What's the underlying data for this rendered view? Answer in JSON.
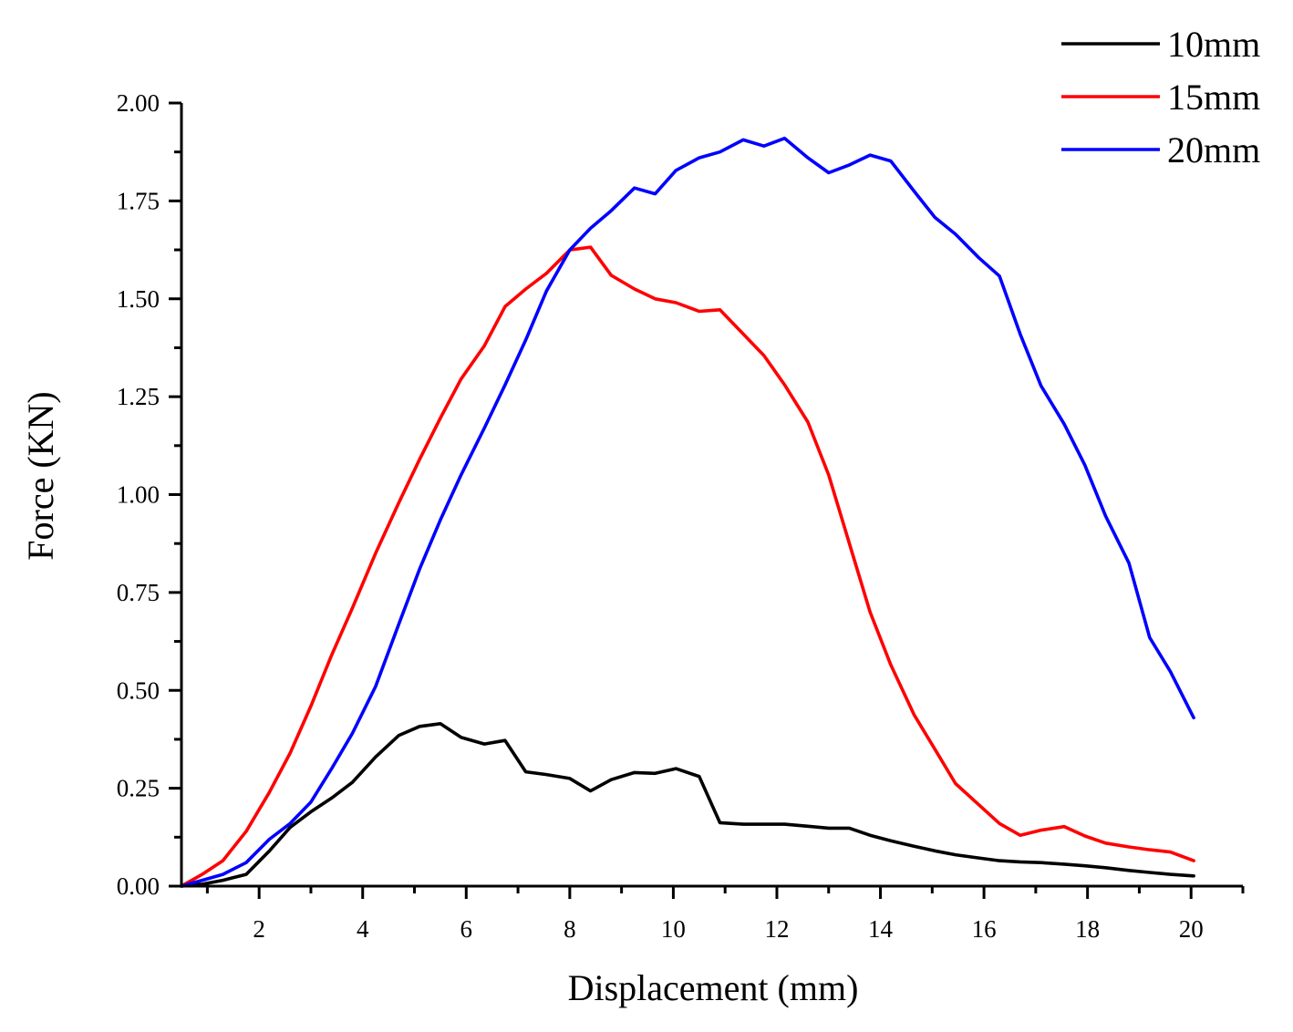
{
  "chart_data": {
    "type": "line",
    "title": "",
    "xlabel": "Displacement (mm)",
    "ylabel": "Force (KN)",
    "xlim": [
      0.5,
      21
    ],
    "ylim": [
      0,
      2.0
    ],
    "xticks": [
      2,
      4,
      6,
      8,
      10,
      12,
      14,
      16,
      18,
      20
    ],
    "xtick_labels": [
      "2",
      "4",
      "6",
      "8",
      "10",
      "12",
      "14",
      "16",
      "18",
      "20"
    ],
    "yticks": [
      0,
      0.25,
      0.5,
      0.75,
      1.0,
      1.25,
      1.5,
      1.75,
      2.0
    ],
    "ytick_labels": [
      "0.00",
      "0.25",
      "0.50",
      "0.75",
      "1.00",
      "1.25",
      "1.50",
      "1.75",
      "2.00"
    ],
    "grid": false,
    "legend_position": "top-right",
    "series": [
      {
        "name": "10mm",
        "color": "#000000",
        "x": [
          0.5,
          0.9,
          1.3,
          1.75,
          2.2,
          2.6,
          3.0,
          3.4,
          3.8,
          4.25,
          4.7,
          5.1,
          5.5,
          5.9,
          6.35,
          6.75,
          7.15,
          7.55,
          8.0,
          8.4,
          8.8,
          9.25,
          9.65,
          10.05,
          10.5,
          10.9,
          11.35,
          11.75,
          12.15,
          12.6,
          13.0,
          13.4,
          13.8,
          14.2,
          14.65,
          15.05,
          15.45,
          15.9,
          16.3,
          16.7,
          17.1,
          17.55,
          17.95,
          18.35,
          18.8,
          19.2,
          19.6,
          20.05
        ],
        "y": [
          0.0,
          0.005,
          0.015,
          0.03,
          0.09,
          0.15,
          0.19,
          0.225,
          0.265,
          0.33,
          0.385,
          0.408,
          0.415,
          0.38,
          0.363,
          0.372,
          0.292,
          0.285,
          0.275,
          0.243,
          0.272,
          0.29,
          0.288,
          0.3,
          0.28,
          0.162,
          0.158,
          0.158,
          0.158,
          0.153,
          0.148,
          0.148,
          0.13,
          0.116,
          0.102,
          0.09,
          0.08,
          0.072,
          0.065,
          0.062,
          0.06,
          0.056,
          0.052,
          0.047,
          0.04,
          0.035,
          0.03,
          0.026
        ]
      },
      {
        "name": "15mm",
        "color": "#ff0000",
        "x": [
          0.5,
          0.9,
          1.3,
          1.75,
          2.2,
          2.6,
          3.0,
          3.4,
          3.8,
          4.25,
          4.7,
          5.1,
          5.5,
          5.9,
          6.35,
          6.75,
          7.15,
          7.55,
          8.0,
          8.4,
          8.8,
          9.25,
          9.65,
          10.05,
          10.5,
          10.9,
          11.35,
          11.75,
          12.15,
          12.6,
          13.0,
          13.4,
          13.8,
          14.2,
          14.65,
          15.05,
          15.45,
          15.9,
          16.3,
          16.7,
          17.1,
          17.55,
          17.95,
          18.35,
          18.8,
          19.2,
          19.6,
          20.05
        ],
        "y": [
          0.0,
          0.03,
          0.065,
          0.14,
          0.24,
          0.34,
          0.46,
          0.59,
          0.71,
          0.85,
          0.98,
          1.09,
          1.195,
          1.295,
          1.38,
          1.48,
          1.525,
          1.565,
          1.625,
          1.632,
          1.56,
          1.525,
          1.5,
          1.49,
          1.468,
          1.472,
          1.41,
          1.355,
          1.28,
          1.185,
          1.05,
          0.875,
          0.7,
          0.565,
          0.438,
          0.35,
          0.262,
          0.208,
          0.16,
          0.13,
          0.143,
          0.152,
          0.128,
          0.11,
          0.1,
          0.093,
          0.087,
          0.065
        ]
      },
      {
        "name": "20mm",
        "color": "#0000ff",
        "x": [
          0.5,
          0.9,
          1.3,
          1.75,
          2.2,
          2.6,
          3.0,
          3.4,
          3.8,
          4.25,
          4.7,
          5.1,
          5.5,
          5.9,
          6.35,
          6.75,
          7.15,
          7.55,
          8.0,
          8.4,
          8.8,
          9.25,
          9.65,
          10.05,
          10.5,
          10.9,
          11.35,
          11.75,
          12.15,
          12.6,
          13.0,
          13.4,
          13.8,
          14.2,
          14.65,
          15.05,
          15.45,
          15.9,
          16.3,
          16.7,
          17.1,
          17.55,
          17.95,
          18.35,
          18.8,
          19.2,
          19.6,
          20.05
        ],
        "y": [
          0.0,
          0.015,
          0.03,
          0.06,
          0.12,
          0.16,
          0.215,
          0.3,
          0.39,
          0.51,
          0.67,
          0.81,
          0.935,
          1.05,
          1.17,
          1.28,
          1.395,
          1.52,
          1.625,
          1.68,
          1.725,
          1.783,
          1.768,
          1.828,
          1.86,
          1.875,
          1.906,
          1.89,
          1.91,
          1.86,
          1.822,
          1.842,
          1.867,
          1.852,
          1.775,
          1.708,
          1.665,
          1.605,
          1.558,
          1.41,
          1.278,
          1.18,
          1.075,
          0.945,
          0.825,
          0.635,
          0.548,
          0.43
        ]
      }
    ]
  }
}
